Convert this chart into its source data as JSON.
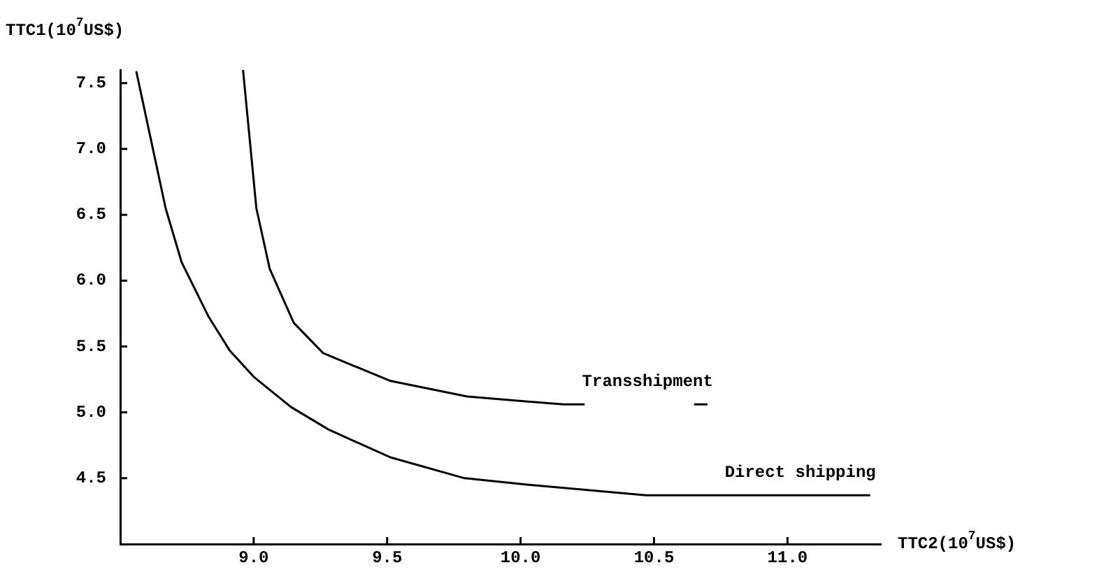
{
  "chart_data": {
    "type": "line",
    "xlabel": "TTC2(10$^{7}$US$)",
    "ylabel": "TTC1(10$^{7}$US$)",
    "xlim": [
      8.5,
      11.35
    ],
    "ylim": [
      4.0,
      7.6
    ],
    "xticks": [
      {
        "value": 9,
        "label": "9.0"
      },
      {
        "value": 9.5,
        "label": "9.5"
      },
      {
        "value": 10,
        "label": "10.0"
      },
      {
        "value": 10.5,
        "label": "10.5"
      },
      {
        "value": 11,
        "label": "11.0"
      }
    ],
    "yticks": [
      {
        "value": 4.5,
        "label": "4.5"
      },
      {
        "value": 5,
        "label": "5.0"
      },
      {
        "value": 5.5,
        "label": "5.5"
      },
      {
        "value": 6,
        "label": "6.0"
      },
      {
        "value": 6.5,
        "label": "6.5"
      },
      {
        "value": 7,
        "label": "7.0"
      },
      {
        "value": 7.5,
        "label": "7.5"
      }
    ],
    "grid": false,
    "legend": false,
    "marker": "none",
    "line_style": "solid",
    "series": [
      {
        "name": "Transshipment",
        "color": "#000000",
        "x": [
          8.96,
          9.01,
          9.06,
          9.15,
          9.26,
          9.51,
          9.8,
          10.16,
          10.24,
          10.45,
          10.65,
          10.7
        ],
        "values": [
          7.6,
          6.55,
          6.09,
          5.68,
          5.45,
          5.24,
          5.12,
          5.06,
          5.06,
          null,
          5.06,
          5.06
        ]
      },
      {
        "name": "Direct shipping",
        "color": "#000000",
        "x": [
          8.56,
          8.67,
          8.73,
          8.83,
          8.91,
          9.0,
          9.14,
          9.28,
          9.51,
          9.79,
          10.03,
          10.47,
          11.31
        ],
        "values": [
          7.59,
          6.55,
          6.14,
          5.73,
          5.47,
          5.27,
          5.04,
          4.87,
          4.66,
          4.5,
          4.45,
          4.37,
          4.37
        ]
      }
    ]
  }
}
